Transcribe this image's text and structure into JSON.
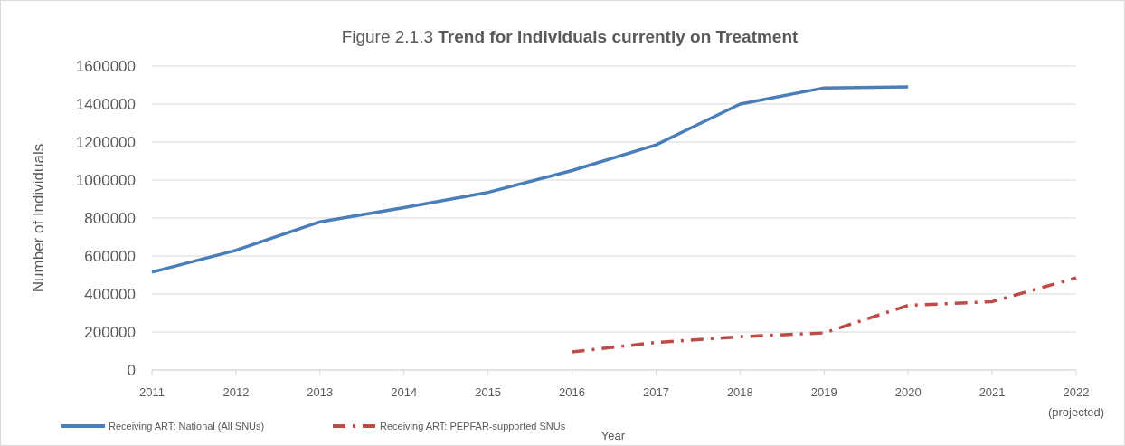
{
  "chart_data": {
    "type": "line",
    "title": "Figure 2.1.3 Trend for Individuals currently on Treatment",
    "xlabel": "Year",
    "ylabel": "Number of Individuals",
    "categories": [
      "2011",
      "2012",
      "2013",
      "2014",
      "2015",
      "2016",
      "2017",
      "2018",
      "2019",
      "2020",
      "2021",
      "2022\n(projected)"
    ],
    "series": [
      {
        "name": "Receiving ART: National (All SNUs)",
        "color": "#4a7ebb",
        "line_style": "solid",
        "values": [
          515000,
          630000,
          780000,
          855000,
          935000,
          1050000,
          1185000,
          1400000,
          1485000,
          1490000,
          null,
          null
        ]
      },
      {
        "name": "Receiving ART: PEPFAR-supported SNUs",
        "color": "#be4b48",
        "line_style": "dashed",
        "values": [
          null,
          null,
          null,
          null,
          null,
          95000,
          145000,
          175000,
          195000,
          340000,
          360000,
          485000
        ]
      }
    ],
    "ylim": [
      0,
      1600000
    ],
    "yticks": [
      0,
      200000,
      400000,
      600000,
      800000,
      1000000,
      1200000,
      1400000,
      1600000
    ],
    "grid": "y",
    "legend": "bottom",
    "marker": "none"
  }
}
